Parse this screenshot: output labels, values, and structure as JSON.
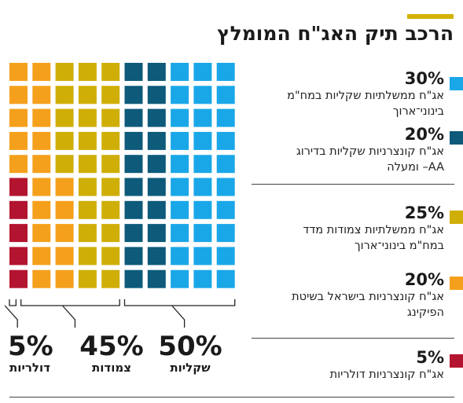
{
  "title": "הרכב תיק האג\"ח המומלץ",
  "colors": {
    "accent": "#d4b106",
    "govt_fixed": "#1aa7e8",
    "corp_fixed": "#0d5a7a",
    "govt_indexed": "#cfae07",
    "corp_indexed": "#f5a01c",
    "corp_dollar": "#b3142f"
  },
  "legend": [
    {
      "pct": "30%",
      "desc": "אג\"ח ממשלתיות שקליות במח\"מ בינוני־ארוך",
      "color": "#1aa7e8"
    },
    {
      "pct": "20%",
      "desc": "אג\"ח קונצרניות שקליות בדירוג AA– ומעלה",
      "color": "#0d5a7a"
    },
    {
      "pct": "25%",
      "desc": "אג\"ח ממשלתיות צמודות מדד במח\"מ בינוני־ארוך",
      "color": "#cfae07"
    },
    {
      "pct": "20%",
      "desc": "אג\"ח קונצרניות בישראל בשיטת הפיקינג",
      "color": "#f5a01c"
    },
    {
      "pct": "5%",
      "desc": "אג\"ח קונצרניות דולריות",
      "color": "#b3142f"
    }
  ],
  "totals": [
    {
      "pct": "5%",
      "label": "דולריות"
    },
    {
      "pct": "45%",
      "label": "צמודות"
    },
    {
      "pct": "50%",
      "label": "שקליות"
    }
  ],
  "chart_data": {
    "type": "waffle",
    "title": "הרכב תיק האג\"ח המומלץ",
    "grid": {
      "rows": 10,
      "cols": 10
    },
    "series": [
      {
        "name": "אג\"ח ממשלתיות שקליות במח\"מ בינוני־ארוך",
        "value": 30,
        "color": "#1aa7e8",
        "group": "שקליות"
      },
      {
        "name": "אג\"ח קונצרניות שקליות בדירוג AA– ומעלה",
        "value": 20,
        "color": "#0d5a7a",
        "group": "שקליות"
      },
      {
        "name": "אג\"ח ממשלתיות צמודות מדד במח\"מ בינוני־ארוך",
        "value": 25,
        "color": "#cfae07",
        "group": "צמודות"
      },
      {
        "name": "אג\"ח קונצרניות בישראל בשיטת הפיקינג",
        "value": 20,
        "color": "#f5a01c",
        "group": "צמודות"
      },
      {
        "name": "אג\"ח קונצרניות דולריות",
        "value": 5,
        "color": "#b3142f",
        "group": "דולריות"
      }
    ],
    "groups": [
      {
        "name": "דולריות",
        "value": 5
      },
      {
        "name": "צמודות",
        "value": 45
      },
      {
        "name": "שקליות",
        "value": 50
      }
    ]
  }
}
